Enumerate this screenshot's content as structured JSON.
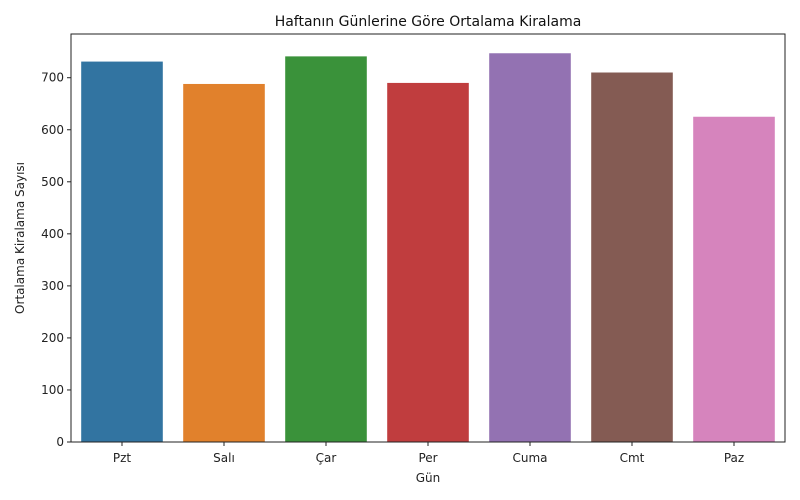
{
  "chart_data": {
    "type": "bar",
    "title": "Haftanın Günlerine Göre Ortalama Kiralama",
    "xlabel": "Gün",
    "ylabel": "Ortalama Kiralama Sayısı",
    "categories": [
      "Pzt",
      "Salı",
      "Çar",
      "Per",
      "Cuma",
      "Cmt",
      "Paz"
    ],
    "values": [
      731,
      688,
      741,
      690,
      747,
      710,
      625
    ],
    "colors": [
      "#3274a1",
      "#e1812c",
      "#3a923a",
      "#c03d3e",
      "#9372b2",
      "#845b53",
      "#d684bd"
    ],
    "ylim": [
      0,
      784
    ],
    "yticks": [
      0,
      100,
      200,
      300,
      400,
      500,
      600,
      700
    ],
    "grid": false,
    "legend": "none"
  }
}
